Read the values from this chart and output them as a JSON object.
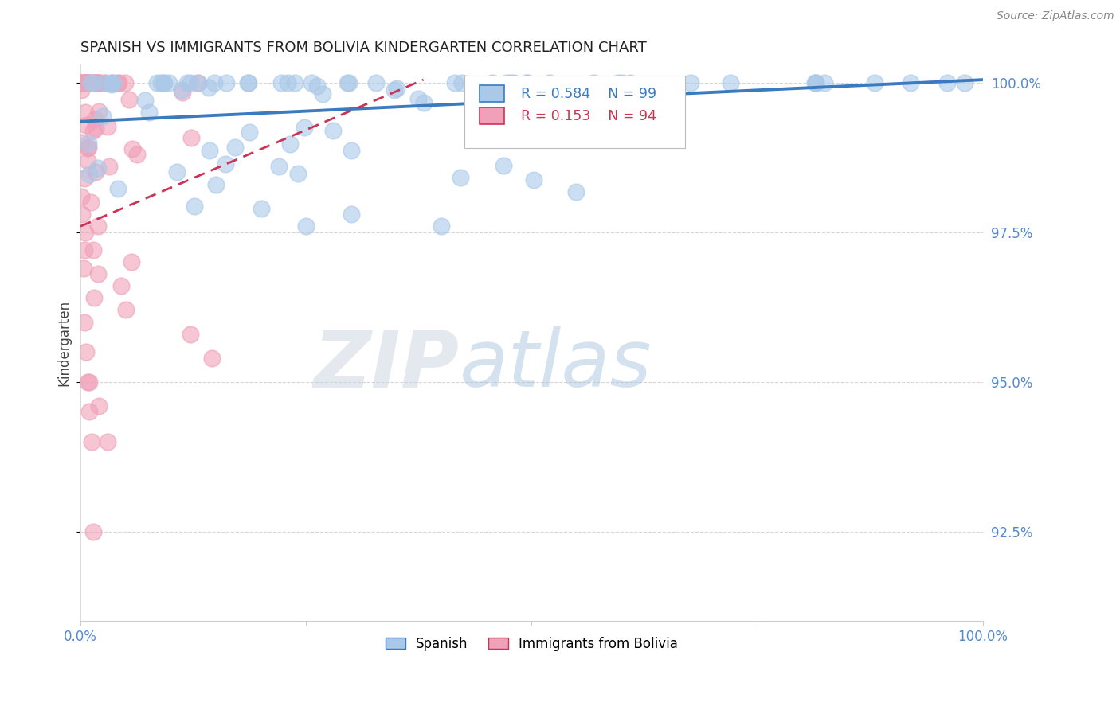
{
  "title": "SPANISH VS IMMIGRANTS FROM BOLIVIA KINDERGARTEN CORRELATION CHART",
  "source": "Source: ZipAtlas.com",
  "ylabel": "Kindergarten",
  "watermark_zip": "ZIP",
  "watermark_atlas": "atlas",
  "legend_labels": [
    "Spanish",
    "Immigrants from Bolivia"
  ],
  "r_spanish": 0.584,
  "n_spanish": 99,
  "r_bolivia": 0.153,
  "n_bolivia": 94,
  "xlim": [
    0.0,
    1.0
  ],
  "ylim": [
    0.91,
    1.003
  ],
  "yticks": [
    1.0,
    0.975,
    0.95,
    0.925
  ],
  "ytick_labels": [
    "100.0%",
    "97.5%",
    "95.0%",
    "92.5%"
  ],
  "color_spanish": "#aac8e8",
  "color_bolivia": "#f0a0b8",
  "trendline_spanish": "#3a7abf",
  "trendline_bolivia": "#cc3355",
  "axis_color": "#5588cc",
  "grid_color": "#bbbbbb",
  "background": "#ffffff",
  "spanish_trendline": [
    [
      0.0,
      0.9935
    ],
    [
      1.0,
      1.0005
    ]
  ],
  "bolivia_trendline_start_x": 0.0,
  "bolivia_trendline_start_y": 0.976,
  "bolivia_trendline_end_x": 0.38,
  "bolivia_trendline_end_y": 1.0005
}
